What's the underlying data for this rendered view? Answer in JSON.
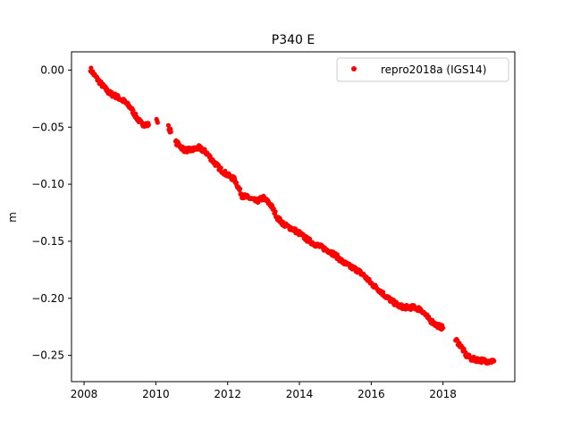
{
  "chart_data": {
    "type": "scatter",
    "title": "P340 E",
    "xlabel": "",
    "ylabel": "m",
    "xlim": [
      2007.65,
      2020.0
    ],
    "ylim": [
      -0.273,
      0.016
    ],
    "xticks": [
      2008,
      2010,
      2012,
      2014,
      2016,
      2018
    ],
    "xtick_labels": [
      "2008",
      "2010",
      "2012",
      "2014",
      "2016",
      "2018"
    ],
    "yticks": [
      0.0,
      -0.05,
      -0.1,
      -0.15,
      -0.2,
      -0.25
    ],
    "ytick_labels": [
      "0.00",
      "−0.05",
      "−0.10",
      "−0.15",
      "−0.20",
      "−0.25"
    ],
    "grid": false,
    "legend_position": "top-right",
    "series": [
      {
        "name": "repro2018a (IGS14)",
        "color": "#ff0000",
        "marker": "circle",
        "segments": [
          [
            [
              2008.18,
              0.001
            ],
            [
              2008.3,
              -0.005
            ],
            [
              2008.5,
              -0.013
            ],
            [
              2008.7,
              -0.02
            ],
            [
              2008.9,
              -0.023
            ],
            [
              2009.1,
              -0.027
            ],
            [
              2009.3,
              -0.033
            ],
            [
              2009.45,
              -0.041
            ],
            [
              2009.6,
              -0.047
            ],
            [
              2009.8,
              -0.048
            ]
          ],
          [
            [
              2010.02,
              -0.042
            ],
            [
              2010.05,
              -0.046
            ]
          ],
          [
            [
              2010.35,
              -0.05
            ],
            [
              2010.42,
              -0.054
            ]
          ],
          [
            [
              2010.55,
              -0.063
            ],
            [
              2010.8,
              -0.07
            ],
            [
              2011.0,
              -0.07
            ],
            [
              2011.2,
              -0.068
            ],
            [
              2011.4,
              -0.072
            ],
            [
              2011.6,
              -0.08
            ],
            [
              2011.8,
              -0.087
            ],
            [
              2012.0,
              -0.092
            ],
            [
              2012.2,
              -0.096
            ],
            [
              2012.4,
              -0.11
            ],
            [
              2012.6,
              -0.112
            ],
            [
              2012.8,
              -0.115
            ],
            [
              2013.0,
              -0.112
            ],
            [
              2013.2,
              -0.118
            ],
            [
              2013.4,
              -0.13
            ],
            [
              2013.6,
              -0.136
            ],
            [
              2013.8,
              -0.139
            ],
            [
              2014.0,
              -0.143
            ],
            [
              2014.2,
              -0.148
            ],
            [
              2014.4,
              -0.152
            ],
            [
              2014.6,
              -0.155
            ],
            [
              2014.8,
              -0.158
            ],
            [
              2015.0,
              -0.162
            ],
            [
              2015.2,
              -0.168
            ],
            [
              2015.4,
              -0.172
            ],
            [
              2015.6,
              -0.175
            ],
            [
              2015.8,
              -0.18
            ],
            [
              2016.0,
              -0.187
            ],
            [
              2016.2,
              -0.192
            ],
            [
              2016.4,
              -0.198
            ],
            [
              2016.6,
              -0.203
            ],
            [
              2016.8,
              -0.207
            ],
            [
              2017.0,
              -0.208
            ],
            [
              2017.2,
              -0.208
            ],
            [
              2017.4,
              -0.21
            ],
            [
              2017.6,
              -0.218
            ],
            [
              2017.8,
              -0.223
            ],
            [
              2018.0,
              -0.226
            ]
          ],
          [
            [
              2018.35,
              -0.236
            ],
            [
              2018.5,
              -0.242
            ],
            [
              2018.65,
              -0.25
            ],
            [
              2018.8,
              -0.253
            ],
            [
              2019.0,
              -0.254
            ],
            [
              2019.2,
              -0.255
            ],
            [
              2019.42,
              -0.255
            ]
          ]
        ]
      }
    ]
  }
}
